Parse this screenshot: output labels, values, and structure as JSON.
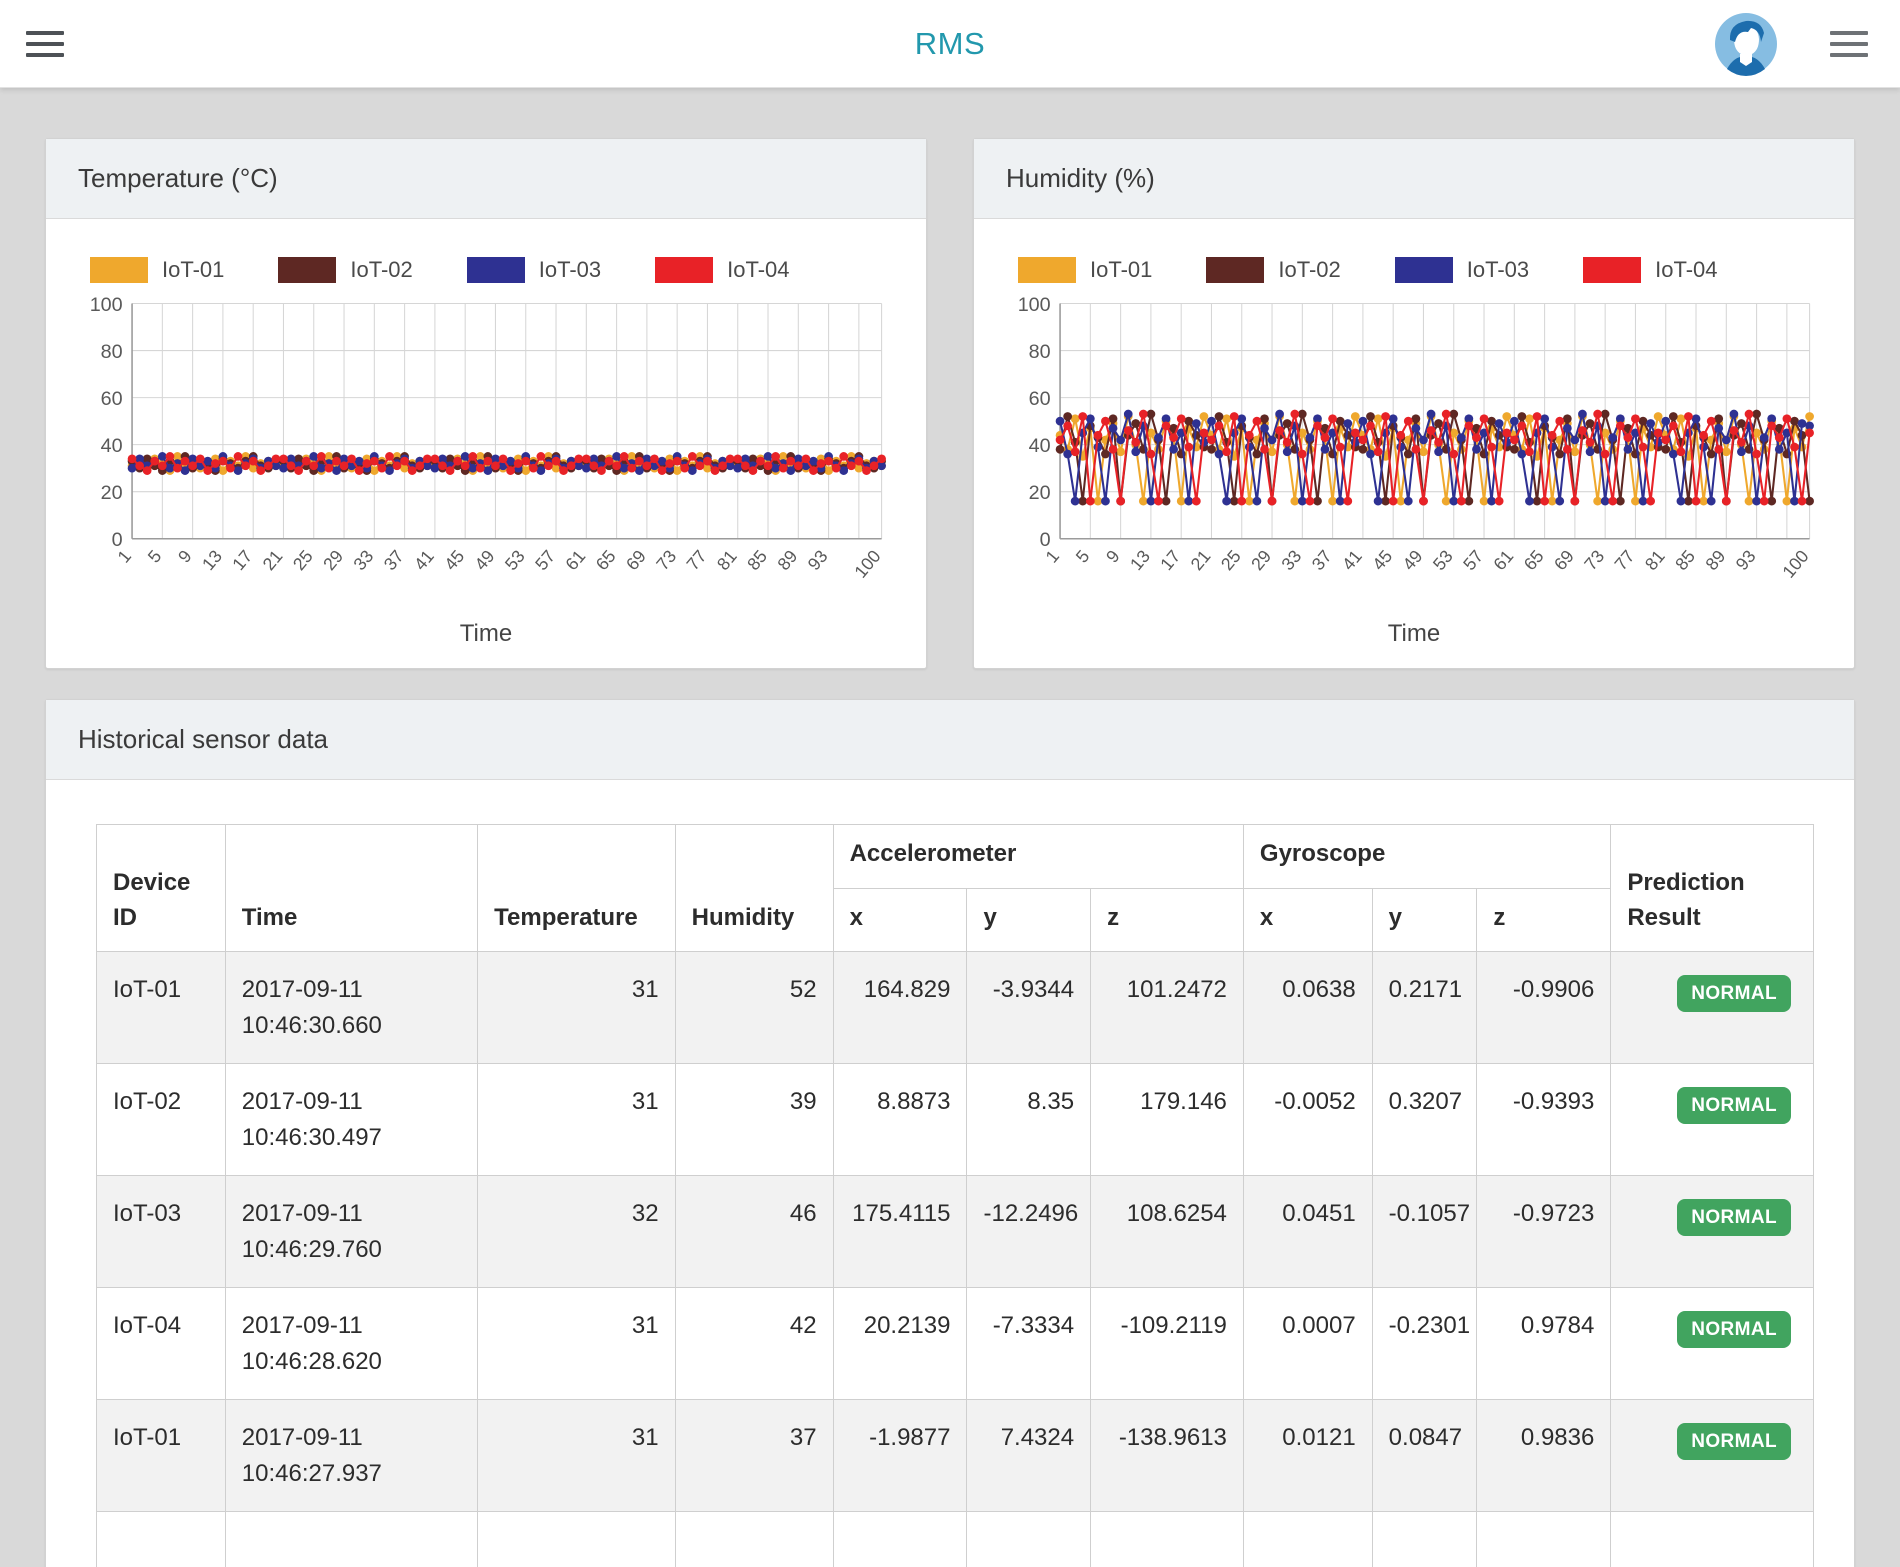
{
  "header": {
    "title": "RMS"
  },
  "colors": {
    "title_teal": "#2298ad",
    "badge_green": "#41a45f",
    "iot01_orange": "#efa82d",
    "iot02_brown": "#5e2823",
    "iot03_navy": "#2e3192",
    "iot04_red": "#e82227"
  },
  "chart_data": [
    {
      "type": "line",
      "title": "Temperature (°C)",
      "xlabel": "Time",
      "ylim": [
        0,
        100
      ],
      "y_ticks": [
        0,
        20,
        40,
        60,
        80,
        100
      ],
      "grid": true,
      "legend_position": "top",
      "x_tick_positions": [
        1,
        5,
        9,
        13,
        17,
        21,
        25,
        29,
        33,
        37,
        41,
        45,
        49,
        53,
        57,
        61,
        65,
        69,
        73,
        77,
        81,
        85,
        89,
        93,
        100
      ],
      "x_tick_labels": [
        "1",
        "5",
        "9",
        "13",
        "17",
        "21",
        "25",
        "29",
        "33",
        "37",
        "41",
        "45",
        "49",
        "53",
        "57",
        "61",
        "65",
        "69",
        "73",
        "77",
        "81",
        "85",
        "89",
        "93",
        "100"
      ],
      "x_grid_positions": [
        1,
        5,
        9,
        13,
        17,
        21,
        25,
        29,
        33,
        37,
        41,
        45,
        49,
        53,
        57,
        61,
        65,
        69,
        73,
        77,
        81,
        85,
        89,
        93,
        97,
        100
      ],
      "series": [
        {
          "name": "IoT-01",
          "color": "#efa82d",
          "values": [
            31,
            33,
            30,
            34,
            32,
            29,
            35,
            31,
            33,
            30,
            32,
            34,
            29,
            33,
            31,
            35,
            30,
            32,
            33,
            31,
            31,
            33,
            30,
            34,
            32,
            29,
            35,
            31,
            33,
            30,
            32,
            34,
            29,
            33,
            31,
            35,
            30,
            32,
            33,
            31,
            31,
            33,
            30,
            34,
            32,
            29,
            35,
            31,
            33,
            30,
            32,
            34,
            29,
            33,
            31,
            35,
            30,
            32,
            33,
            31,
            31,
            33,
            30,
            34,
            32,
            29,
            35,
            31,
            33,
            30,
            32,
            34,
            29,
            33,
            31,
            35,
            30,
            32,
            33,
            31,
            31,
            33,
            30,
            34,
            32,
            29,
            35,
            31,
            33,
            30,
            32,
            34,
            29,
            33,
            31,
            35,
            30,
            32,
            33,
            31
          ]
        },
        {
          "name": "IoT-02",
          "color": "#5e2823",
          "values": [
            33,
            30,
            34,
            31,
            29,
            33,
            31,
            35,
            30,
            33,
            31,
            29,
            34,
            32,
            30,
            33,
            35,
            31,
            30,
            33,
            33,
            30,
            34,
            31,
            29,
            33,
            31,
            35,
            30,
            33,
            31,
            29,
            34,
            32,
            30,
            33,
            35,
            31,
            30,
            33,
            33,
            30,
            34,
            31,
            29,
            33,
            31,
            35,
            30,
            33,
            31,
            29,
            34,
            32,
            30,
            33,
            35,
            31,
            30,
            33,
            33,
            30,
            34,
            31,
            29,
            33,
            31,
            35,
            30,
            33,
            31,
            29,
            34,
            32,
            30,
            33,
            35,
            31,
            30,
            33,
            33,
            30,
            34,
            31,
            29,
            33,
            31,
            35,
            30,
            33,
            31,
            29,
            34,
            32,
            30,
            33,
            35,
            31,
            30,
            33
          ]
        },
        {
          "name": "IoT-03",
          "color": "#2e3192",
          "values": [
            30,
            34,
            31,
            33,
            35,
            30,
            32,
            29,
            34,
            31,
            33,
            30,
            35,
            31,
            29,
            32,
            34,
            30,
            33,
            31,
            30,
            34,
            31,
            33,
            35,
            30,
            32,
            29,
            34,
            31,
            33,
            30,
            35,
            31,
            29,
            32,
            34,
            30,
            33,
            31,
            30,
            34,
            31,
            33,
            35,
            30,
            32,
            29,
            34,
            31,
            33,
            30,
            35,
            31,
            29,
            32,
            34,
            30,
            33,
            31,
            30,
            34,
            31,
            33,
            35,
            30,
            32,
            29,
            34,
            31,
            33,
            30,
            35,
            31,
            29,
            32,
            34,
            30,
            33,
            31,
            30,
            34,
            31,
            33,
            35,
            30,
            32,
            29,
            34,
            31,
            33,
            30,
            35,
            31,
            29,
            32,
            34,
            30,
            33,
            31
          ]
        },
        {
          "name": "IoT-04",
          "color": "#e82227",
          "values": [
            34,
            31,
            29,
            33,
            31,
            35,
            30,
            33,
            31,
            34,
            29,
            32,
            33,
            30,
            35,
            31,
            33,
            29,
            31,
            34,
            34,
            31,
            29,
            33,
            31,
            35,
            30,
            33,
            31,
            34,
            29,
            32,
            33,
            30,
            35,
            31,
            33,
            29,
            31,
            34,
            34,
            31,
            29,
            33,
            31,
            35,
            30,
            33,
            31,
            34,
            29,
            32,
            33,
            30,
            35,
            31,
            33,
            29,
            31,
            34,
            34,
            31,
            29,
            33,
            31,
            35,
            30,
            33,
            31,
            34,
            29,
            32,
            33,
            30,
            35,
            31,
            33,
            29,
            31,
            34,
            34,
            31,
            29,
            33,
            31,
            35,
            30,
            33,
            31,
            34,
            29,
            32,
            33,
            30,
            35,
            31,
            33,
            29,
            31,
            34
          ]
        }
      ]
    },
    {
      "type": "line",
      "title": "Humidity (%)",
      "xlabel": "Time",
      "ylim": [
        0,
        100
      ],
      "y_ticks": [
        0,
        20,
        40,
        60,
        80,
        100
      ],
      "grid": true,
      "legend_position": "top",
      "x_tick_positions": [
        1,
        5,
        9,
        13,
        17,
        21,
        25,
        29,
        33,
        37,
        41,
        45,
        49,
        53,
        57,
        61,
        65,
        69,
        73,
        77,
        81,
        85,
        89,
        93,
        100
      ],
      "x_tick_labels": [
        "1",
        "5",
        "9",
        "13",
        "17",
        "21",
        "25",
        "29",
        "33",
        "37",
        "41",
        "45",
        "49",
        "53",
        "57",
        "61",
        "65",
        "69",
        "73",
        "77",
        "81",
        "85",
        "89",
        "93",
        "100"
      ],
      "x_grid_positions": [
        1,
        5,
        9,
        13,
        17,
        21,
        25,
        29,
        33,
        37,
        41,
        45,
        49,
        53,
        57,
        61,
        65,
        69,
        73,
        77,
        81,
        85,
        89,
        93,
        97,
        100
      ],
      "series": [
        {
          "name": "IoT-01",
          "color": "#efa82d",
          "values": [
            44,
            38,
            51,
            35,
            47,
            16,
            42,
            49,
            37,
            52,
            40,
            16,
            45,
            38,
            50,
            43,
            16,
            47,
            39,
            52,
            44,
            38,
            51,
            35,
            47,
            16,
            42,
            49,
            37,
            52,
            40,
            16,
            45,
            38,
            50,
            43,
            16,
            47,
            39,
            52,
            44,
            38,
            51,
            35,
            47,
            16,
            42,
            49,
            37,
            52,
            40,
            16,
            45,
            38,
            50,
            43,
            16,
            47,
            39,
            52,
            44,
            38,
            51,
            35,
            47,
            16,
            42,
            49,
            37,
            52,
            40,
            16,
            45,
            38,
            50,
            43,
            16,
            47,
            39,
            52,
            44,
            38,
            51,
            35,
            47,
            16,
            42,
            49,
            37,
            52,
            40,
            16,
            45,
            38,
            50,
            43,
            16,
            47,
            39,
            52
          ]
        },
        {
          "name": "IoT-02",
          "color": "#5e2823",
          "values": [
            38,
            52,
            41,
            16,
            48,
            43,
            36,
            51,
            16,
            44,
            49,
            38,
            53,
            42,
            16,
            47,
            36,
            50,
            44,
            39,
            38,
            52,
            41,
            16,
            48,
            43,
            36,
            51,
            16,
            44,
            49,
            38,
            53,
            42,
            16,
            47,
            36,
            50,
            44,
            39,
            38,
            52,
            41,
            16,
            48,
            43,
            36,
            51,
            16,
            44,
            49,
            38,
            53,
            42,
            16,
            47,
            36,
            50,
            44,
            39,
            38,
            52,
            41,
            16,
            48,
            43,
            36,
            51,
            16,
            44,
            49,
            38,
            53,
            42,
            16,
            47,
            36,
            50,
            44,
            39,
            38,
            52,
            41,
            16,
            48,
            43,
            36,
            51,
            16,
            44,
            49,
            38,
            53,
            42,
            16,
            47,
            36,
            50,
            44,
            16
          ]
        },
        {
          "name": "IoT-03",
          "color": "#2e3192",
          "values": [
            50,
            36,
            16,
            45,
            51,
            39,
            16,
            47,
            42,
            53,
            37,
            48,
            16,
            43,
            51,
            38,
            45,
            16,
            49,
            41,
            50,
            36,
            16,
            45,
            51,
            39,
            16,
            47,
            42,
            53,
            37,
            48,
            16,
            43,
            51,
            38,
            45,
            16,
            49,
            41,
            50,
            36,
            16,
            45,
            51,
            39,
            16,
            47,
            42,
            53,
            37,
            48,
            16,
            43,
            51,
            38,
            45,
            16,
            49,
            41,
            50,
            36,
            16,
            45,
            51,
            39,
            16,
            47,
            42,
            53,
            37,
            48,
            16,
            43,
            51,
            38,
            45,
            16,
            49,
            41,
            50,
            36,
            16,
            45,
            51,
            39,
            16,
            47,
            42,
            53,
            37,
            48,
            16,
            43,
            51,
            38,
            45,
            16,
            49,
            48
          ]
        },
        {
          "name": "IoT-04",
          "color": "#e82227",
          "values": [
            42,
            48,
            37,
            52,
            16,
            44,
            50,
            38,
            16,
            46,
            41,
            53,
            36,
            16,
            48,
            43,
            51,
            39,
            16,
            45,
            42,
            48,
            37,
            52,
            16,
            44,
            50,
            38,
            16,
            46,
            41,
            53,
            36,
            16,
            48,
            43,
            51,
            39,
            16,
            45,
            42,
            48,
            37,
            52,
            16,
            44,
            50,
            38,
            16,
            46,
            41,
            53,
            36,
            16,
            48,
            43,
            51,
            39,
            16,
            45,
            42,
            48,
            37,
            52,
            16,
            44,
            50,
            38,
            16,
            46,
            41,
            53,
            36,
            16,
            48,
            43,
            51,
            39,
            16,
            45,
            42,
            48,
            37,
            52,
            16,
            44,
            50,
            38,
            16,
            46,
            41,
            53,
            36,
            16,
            48,
            43,
            51,
            39,
            16,
            45
          ]
        }
      ]
    }
  ],
  "table_card": {
    "title": "Historical sensor data",
    "columns": {
      "device_id": "Device ID",
      "time": "Time",
      "temperature": "Temperature",
      "humidity": "Humidity",
      "accelerometer": "Accelerometer",
      "gyroscope": "Gyroscope",
      "prediction": "Prediction Result",
      "x": "x",
      "y": "y",
      "z": "z"
    },
    "rows": [
      {
        "device": "IoT-01",
        "time": "2017-09-11 10:46:30.660",
        "temp": "31",
        "hum": "52",
        "ax": "164.829",
        "ay": "-3.9344",
        "az": "101.2472",
        "gx": "0.0638",
        "gy": "0.2171",
        "gz": "-0.9906",
        "prediction": "NORMAL"
      },
      {
        "device": "IoT-02",
        "time": "2017-09-11 10:46:30.497",
        "temp": "31",
        "hum": "39",
        "ax": "8.8873",
        "ay": "8.35",
        "az": "179.146",
        "gx": "-0.0052",
        "gy": "0.3207",
        "gz": "-0.9393",
        "prediction": "NORMAL"
      },
      {
        "device": "IoT-03",
        "time": "2017-09-11 10:46:29.760",
        "temp": "32",
        "hum": "46",
        "ax": "175.4115",
        "ay": "-12.2496",
        "az": "108.6254",
        "gx": "0.0451",
        "gy": "-0.1057",
        "gz": "-0.9723",
        "prediction": "NORMAL"
      },
      {
        "device": "IoT-04",
        "time": "2017-09-11 10:46:28.620",
        "temp": "31",
        "hum": "42",
        "ax": "20.2139",
        "ay": "-7.3334",
        "az": "-109.2119",
        "gx": "0.0007",
        "gy": "-0.2301",
        "gz": "0.9784",
        "prediction": "NORMAL"
      },
      {
        "device": "IoT-01",
        "time": "2017-09-11 10:46:27.937",
        "temp": "31",
        "hum": "37",
        "ax": "-1.9877",
        "ay": "7.4324",
        "az": "-138.9613",
        "gx": "0.0121",
        "gy": "0.0847",
        "gz": "0.9836",
        "prediction": "NORMAL"
      },
      {
        "device": "",
        "time": "",
        "temp": "",
        "hum": "",
        "ax": "",
        "ay": "",
        "az": "",
        "gx": "",
        "gy": "",
        "gz": "",
        "prediction": ""
      }
    ]
  }
}
